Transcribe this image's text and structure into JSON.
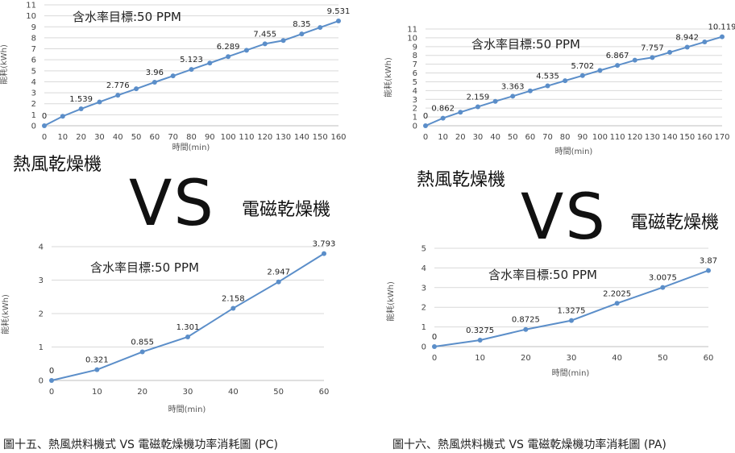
{
  "captions": {
    "left": "圖十五、熱風烘料機式 VS 電磁乾燥機功率消耗圖 (PC)",
    "right": "圖十六、熱風烘料機式 VS 電磁乾燥機功率消耗圖 (PA)"
  },
  "labels": {
    "left_hot_air": "熱風乾燥機",
    "left_vs": "VS",
    "left_em": "電磁乾燥機",
    "right_hot_air": "熱風乾燥機",
    "right_vs": "VS",
    "right_em": "電磁乾燥機"
  },
  "colors": {
    "series": "#5b8ec9",
    "grid": "#d9d9d9",
    "axis": "#bfbfbf"
  },
  "chart_data": [
    {
      "id": "pc_hot_air",
      "type": "line",
      "annotation": "含水率目標:50 PPM",
      "xlabel": "時間(min)",
      "ylabel": "能耗(kWh)",
      "x": [
        0,
        10,
        20,
        30,
        40,
        50,
        60,
        70,
        80,
        90,
        100,
        110,
        120,
        130,
        140,
        150,
        160
      ],
      "values": [
        0,
        0.862,
        1.539,
        2.159,
        2.776,
        3.363,
        3.96,
        4.535,
        5.123,
        5.702,
        6.289,
        6.867,
        7.455,
        7.757,
        8.35,
        8.942,
        9.531
      ],
      "labeled": [
        [
          0,
          "0"
        ],
        [
          20,
          "1.539"
        ],
        [
          40,
          "2.776"
        ],
        [
          60,
          "3.96"
        ],
        [
          80,
          "5.123"
        ],
        [
          100,
          "6.289"
        ],
        [
          120,
          "7.455"
        ],
        [
          140,
          "8.35"
        ],
        [
          160,
          "9.531"
        ]
      ],
      "xticks": [
        0,
        10,
        20,
        30,
        40,
        50,
        60,
        70,
        80,
        90,
        100,
        110,
        120,
        130,
        140,
        150,
        160
      ],
      "yticks": [
        0,
        1,
        2,
        3,
        4,
        5,
        6,
        7,
        8,
        9,
        10,
        11
      ],
      "xlim": [
        0,
        160
      ],
      "ylim": [
        0,
        11
      ]
    },
    {
      "id": "pc_em",
      "type": "line",
      "annotation": "含水率目標:50 PPM",
      "xlabel": "時間(min)",
      "ylabel": "能耗(kWh)",
      "x": [
        0,
        10,
        20,
        30,
        40,
        50,
        60
      ],
      "values": [
        0,
        0.321,
        0.855,
        1.301,
        2.158,
        2.947,
        3.793
      ],
      "labeled": [
        [
          0,
          "0"
        ],
        [
          10,
          "0.321"
        ],
        [
          20,
          "0.855"
        ],
        [
          30,
          "1.301"
        ],
        [
          40,
          "2.158"
        ],
        [
          50,
          "2.947"
        ],
        [
          60,
          "3.793"
        ]
      ],
      "xticks": [
        0,
        10,
        20,
        30,
        40,
        50,
        60
      ],
      "yticks": [
        0,
        1,
        2,
        3,
        4
      ],
      "xlim": [
        0,
        60
      ],
      "ylim": [
        0,
        4
      ]
    },
    {
      "id": "pa_hot_air",
      "type": "line",
      "annotation": "含水率目標:50 PPM",
      "xlabel": "時間(min)",
      "ylabel": "能耗(kWh)",
      "x": [
        0,
        10,
        20,
        30,
        40,
        50,
        60,
        70,
        80,
        90,
        100,
        110,
        120,
        130,
        140,
        150,
        160,
        170
      ],
      "values": [
        0,
        0.862,
        1.539,
        2.159,
        2.776,
        3.363,
        3.96,
        4.535,
        5.123,
        5.702,
        6.289,
        6.867,
        7.455,
        7.757,
        8.35,
        8.942,
        9.531,
        10.119
      ],
      "labeled": [
        [
          0,
          "0"
        ],
        [
          10,
          "0.862"
        ],
        [
          30,
          "2.159"
        ],
        [
          50,
          "3.363"
        ],
        [
          70,
          "4.535"
        ],
        [
          90,
          "5.702"
        ],
        [
          110,
          "6.867"
        ],
        [
          130,
          "7.757"
        ],
        [
          150,
          "8.942"
        ],
        [
          170,
          "10.119"
        ]
      ],
      "xticks": [
        0,
        10,
        20,
        30,
        40,
        50,
        60,
        70,
        80,
        90,
        100,
        110,
        120,
        130,
        140,
        150,
        160,
        170
      ],
      "yticks": [
        0,
        1,
        2,
        3,
        4,
        5,
        6,
        7,
        8,
        9,
        10,
        11
      ],
      "xlim": [
        0,
        170
      ],
      "ylim": [
        0,
        11
      ]
    },
    {
      "id": "pa_em",
      "type": "line",
      "annotation": "含水率目標:50 PPM",
      "xlabel": "時間(min)",
      "ylabel": "能耗(kWh)",
      "x": [
        0,
        10,
        20,
        30,
        40,
        50,
        60
      ],
      "values": [
        0,
        0.3275,
        0.8725,
        1.3275,
        2.2025,
        3.0075,
        3.87
      ],
      "labeled": [
        [
          0,
          "0"
        ],
        [
          10,
          "0.3275"
        ],
        [
          20,
          "0.8725"
        ],
        [
          30,
          "1.3275"
        ],
        [
          40,
          "2.2025"
        ],
        [
          50,
          "3.0075"
        ],
        [
          60,
          "3.87"
        ]
      ],
      "xticks": [
        0,
        10,
        20,
        30,
        40,
        50,
        60
      ],
      "yticks": [
        0,
        1,
        2,
        3,
        4,
        5
      ],
      "xlim": [
        0,
        60
      ],
      "ylim": [
        0,
        5
      ]
    }
  ]
}
